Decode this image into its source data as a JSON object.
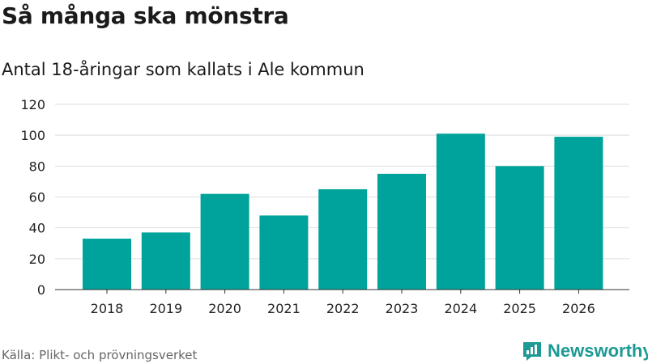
{
  "header": {
    "title": "Så många ska mönstra",
    "subtitle": "Antal 18-åringar som kallats i Ale kommun"
  },
  "footer": {
    "source": "Källa: Plikt- och prövningsverket",
    "brand": "Newsworthy",
    "brand_icon": "newsworthy-logo-icon"
  },
  "colors": {
    "bar": "#00a39b",
    "grid": "#dddddd",
    "axis": "#333333",
    "brand": "#1c9a93"
  },
  "chart_data": {
    "type": "bar",
    "categories": [
      "2018",
      "2019",
      "2020",
      "2021",
      "2022",
      "2023",
      "2024",
      "2025",
      "2026"
    ],
    "values": [
      33,
      37,
      62,
      48,
      65,
      75,
      101,
      80,
      99
    ],
    "ylim": [
      0,
      120
    ],
    "yticks": [
      0,
      20,
      40,
      60,
      80,
      100,
      120
    ],
    "grid": true,
    "legend": "none"
  }
}
